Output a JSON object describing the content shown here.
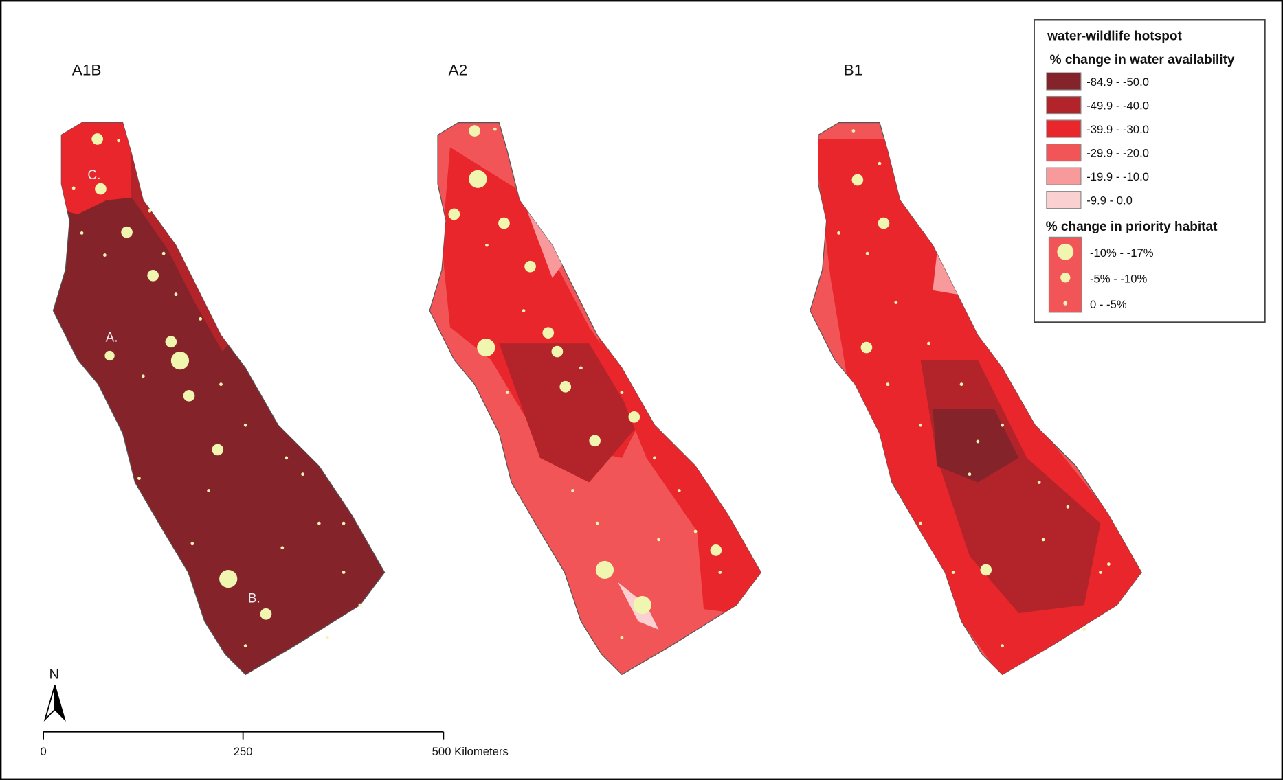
{
  "maps": [
    {
      "label": "A1B",
      "annotations": [
        "C.",
        "A.",
        "B."
      ]
    },
    {
      "label": "A2"
    },
    {
      "label": "B1"
    }
  ],
  "legend": {
    "title": "water-wildlife hotspot",
    "water_heading": "% change in water availability",
    "water_classes": [
      "-84.9 - -50.0",
      "-49.9 - -40.0",
      "-39.9 - -30.0",
      "-29.9 - -20.0",
      "-19.9 - -10.0",
      "-9.9 - 0.0"
    ],
    "habitat_heading": "% change in priority habitat",
    "habitat_classes": [
      "-10% - -17%",
      "-5% - -10%",
      "0 - -5%"
    ]
  },
  "north_label": "N",
  "scale_labels": [
    "0",
    "250",
    "500 Kilometers"
  ]
}
